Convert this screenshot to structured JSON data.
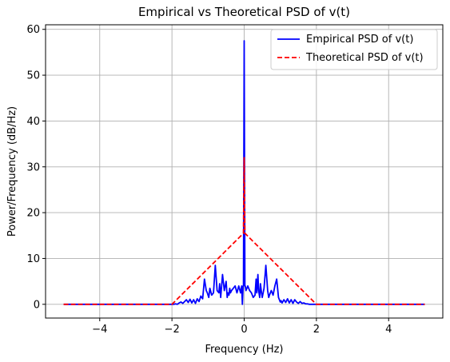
{
  "chart_data": {
    "type": "line",
    "title": "Empirical vs Theoretical PSD of v(t)",
    "xlabel": "Frequency (Hz)",
    "ylabel": "Power/Frequency (dB/Hz)",
    "xlim": [
      -5.5,
      5.5
    ],
    "ylim": [
      -3,
      61
    ],
    "xticks": [
      -4,
      -2,
      0,
      2,
      4
    ],
    "yticks": [
      0,
      10,
      20,
      30,
      40,
      50,
      60
    ],
    "grid": true,
    "legend_position": "top-right",
    "series": [
      {
        "name": "Empirical PSD of v(t)",
        "color": "#0000ff",
        "style": "solid",
        "x": [
          -5,
          -1.95,
          -1.9,
          -1.85,
          -1.8,
          -1.75,
          -1.7,
          -1.65,
          -1.6,
          -1.55,
          -1.5,
          -1.45,
          -1.4,
          -1.35,
          -1.3,
          -1.25,
          -1.2,
          -1.15,
          -1.1,
          -1.05,
          -1.02,
          -0.98,
          -0.95,
          -0.9,
          -0.85,
          -0.8,
          -0.75,
          -0.7,
          -0.68,
          -0.65,
          -0.6,
          -0.55,
          -0.5,
          -0.47,
          -0.45,
          -0.42,
          -0.4,
          -0.38,
          -0.35,
          -0.3,
          -0.25,
          -0.2,
          -0.15,
          -0.1,
          -0.07,
          -0.05,
          -0.03,
          -0.02,
          0,
          0.02,
          0.03,
          0.05,
          0.1,
          0.15,
          0.2,
          0.25,
          0.3,
          0.33,
          0.35,
          0.38,
          0.4,
          0.43,
          0.45,
          0.48,
          0.5,
          0.55,
          0.6,
          0.65,
          0.68,
          0.7,
          0.75,
          0.8,
          0.85,
          0.9,
          0.95,
          1.0,
          1.02,
          1.05,
          1.1,
          1.15,
          1.2,
          1.25,
          1.3,
          1.35,
          1.4,
          1.45,
          1.5,
          1.55,
          1.6,
          1.65,
          1.7,
          1.75,
          1.8,
          1.85,
          1.9,
          1.95,
          5
        ],
        "y": [
          0,
          0,
          0.1,
          0,
          0.3,
          0.5,
          0.2,
          0.6,
          1.0,
          0.4,
          1.1,
          0.3,
          1.0,
          0.2,
          1.2,
          0.6,
          1.8,
          1.2,
          5.5,
          3.0,
          2.5,
          1.5,
          3.5,
          2.0,
          2.5,
          8.5,
          3.0,
          2.5,
          4.5,
          1.5,
          6.5,
          3.0,
          5.0,
          1.5,
          2.5,
          2.0,
          3.5,
          2.5,
          3.0,
          3.5,
          4.0,
          2.5,
          4.0,
          2.5,
          4.0,
          0,
          4.0,
          4.0,
          57.5,
          4.0,
          4.0,
          3.0,
          4.0,
          3.0,
          2.5,
          1.5,
          2.0,
          5.5,
          2.5,
          6.5,
          3.0,
          1.5,
          4.5,
          2.5,
          1.5,
          3.5,
          8.5,
          3.0,
          1.5,
          2.0,
          3.0,
          2.0,
          4.0,
          5.5,
          1.5,
          0.5,
          0.8,
          0.3,
          1.0,
          0.4,
          1.2,
          0.3,
          1.0,
          0.2,
          1.0,
          0.5,
          0.2,
          0.6,
          0.2,
          0.3,
          0.1,
          0.1,
          0,
          0,
          0,
          0,
          0
        ]
      },
      {
        "name": "Theoretical PSD of v(t)",
        "color": "#ff0000",
        "style": "dashed",
        "x": [
          -5,
          -2,
          -0.02,
          0,
          0.02,
          2,
          5
        ],
        "y": [
          0,
          0,
          15.5,
          32,
          15.5,
          0,
          0
        ]
      }
    ]
  }
}
